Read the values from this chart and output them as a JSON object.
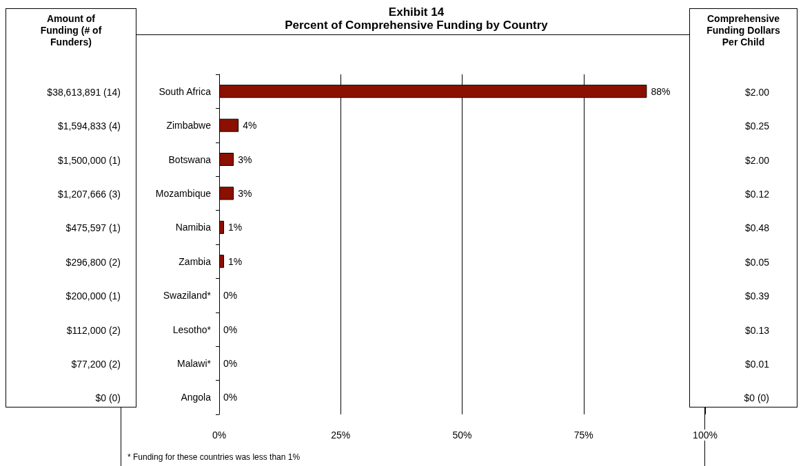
{
  "chart_data": [
    {
      "type": "other",
      "title": "Amount of Funding (# of Funders)",
      "annotations": [
        "$38,613,891 (14)",
        "$1,594,833 (4)",
        "$1,500,000 (1)",
        "$1,207,666 (3)",
        "$475,597 (1)",
        "$296,800 (2)",
        "$200,000 (1)",
        "$112,000 (2)",
        "$77,200 (2)",
        "$0 (0)"
      ]
    },
    {
      "type": "bar",
      "title": "Exhibit 14",
      "subtitle": "Percent of Comprehensive Funding by Country",
      "orientation": "horizontal",
      "categories": [
        "South Africa",
        "Zimbabwe",
        "Botswana",
        "Mozambique",
        "Namibia",
        "Zambia",
        "Swaziland*",
        "Lesotho*",
        "Malawi*",
        "Angola"
      ],
      "values": [
        88,
        4,
        3,
        3,
        1,
        1,
        0,
        0,
        0,
        0
      ],
      "value_labels": [
        "88%",
        "4%",
        "3%",
        "3%",
        "1%",
        "1%",
        "0%",
        "0%",
        "0%",
        "0%"
      ],
      "color": "#8b1000",
      "xlim": [
        0,
        100
      ],
      "xticks": [
        {
          "value": 0,
          "label": "0%"
        },
        {
          "value": 25,
          "label": "25%"
        },
        {
          "value": 50,
          "label": "50%"
        },
        {
          "value": 75,
          "label": "75%"
        },
        {
          "value": 100,
          "label": "100%"
        }
      ],
      "grid": "x",
      "annotations": [
        "* Funding for these countries was less than 1%"
      ]
    },
    {
      "type": "other",
      "title": "Comprehensive Funding Dollars Per Child",
      "annotations": [
        "$2.00",
        "$0.25",
        "$2.00",
        "$0.12",
        "$0.48",
        "$0.05",
        "$0.39",
        "$0.13",
        "$0.01",
        "$0 (0)"
      ]
    }
  ]
}
